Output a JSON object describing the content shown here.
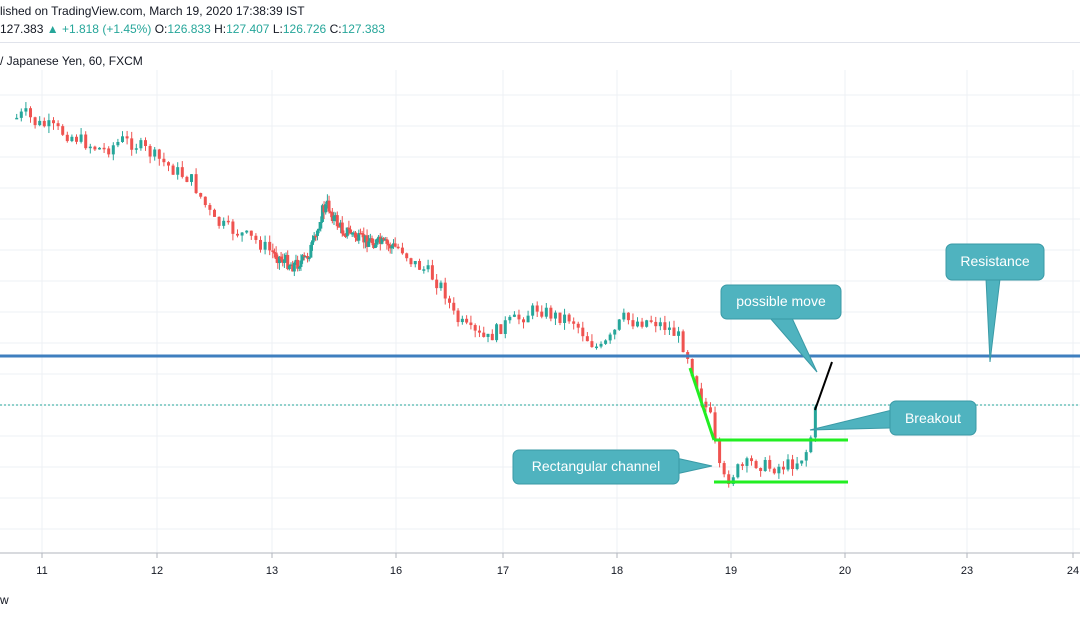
{
  "header": {
    "published": "lished on TradingView.com, March 19, 2020 17:38:39 IST",
    "price": "127.383",
    "change": "▲ +1.818 (+1.45%)",
    "o_label": "O:",
    "o_value": "126.833",
    "h_label": "H:",
    "h_value": "127.407",
    "l_label": "L:",
    "l_value": "126.726",
    "c_label": "C:",
    "c_value": "127.383",
    "symbol": "/ Japanese Yen, 60, FXCM"
  },
  "footer": {
    "text": "w"
  },
  "colors": {
    "up": "#26a69a",
    "down": "#ef5350",
    "resistance": "#3f7fbf",
    "channel": "#22ee22",
    "callout": "#4fb3bf",
    "grid": "#eef0f4"
  },
  "chart_data": {
    "type": "candlestick",
    "x_ticks": [
      "11",
      "12",
      "13",
      "16",
      "17",
      "18",
      "19",
      "20",
      "23",
      "24"
    ],
    "x_ticks_dates": [
      "11",
      "12",
      "13",
      "16",
      "17",
      "18",
      "19",
      "20",
      "23",
      "24"
    ],
    "price_path": [
      [
        10.78,
        118.0
      ],
      [
        10.85,
        113.0
      ],
      [
        10.95,
        124.0
      ],
      [
        11.05,
        126.0
      ],
      [
        11.15,
        131.0
      ],
      [
        11.3,
        138.0
      ],
      [
        11.45,
        147.0
      ],
      [
        11.55,
        150.0
      ],
      [
        11.7,
        140.0
      ],
      [
        11.85,
        146.0
      ],
      [
        12.0,
        158.0
      ],
      [
        12.15,
        170.0
      ],
      [
        12.3,
        180.0
      ],
      [
        12.5,
        222.0
      ],
      [
        12.65,
        230.0
      ],
      [
        12.85,
        240.0
      ],
      [
        13.0,
        252.0
      ],
      [
        13.2,
        258.0
      ],
      [
        13.5,
        265.0
      ],
      [
        13.8,
        260.0
      ],
      [
        14.05,
        240.0
      ],
      [
        14.2,
        212.0
      ],
      [
        14.35,
        205.0
      ],
      [
        14.5,
        218.0
      ],
      [
        14.7,
        230.0
      ],
      [
        14.9,
        232.0
      ],
      [
        15.1,
        240.0
      ],
      [
        15.2,
        240.0
      ],
      [
        15.3,
        240.0
      ],
      [
        16.05,
        248.0
      ],
      [
        16.15,
        262.0
      ],
      [
        16.3,
        272.0
      ],
      [
        16.45,
        290.0
      ],
      [
        16.55,
        318.0
      ],
      [
        16.7,
        332.0
      ],
      [
        16.85,
        340.0
      ],
      [
        17.0,
        325.0
      ],
      [
        17.15,
        318.0
      ],
      [
        17.3,
        308.0
      ],
      [
        17.45,
        316.0
      ],
      [
        17.6,
        318.0
      ],
      [
        17.75,
        340.0
      ],
      [
        17.85,
        350.0
      ],
      [
        17.95,
        338.0
      ],
      [
        18.05,
        318.0
      ],
      [
        18.15,
        322.0
      ],
      [
        18.3,
        320.0
      ],
      [
        18.45,
        328.0
      ],
      [
        18.55,
        338.0
      ],
      [
        18.62,
        355.0
      ],
      [
        18.68,
        378.0
      ],
      [
        18.75,
        400.0
      ],
      [
        18.82,
        418.0
      ],
      [
        18.9,
        470.0
      ],
      [
        18.95,
        482.0
      ],
      [
        19.05,
        470.0
      ],
      [
        19.2,
        462.0
      ],
      [
        19.35,
        468.0
      ],
      [
        19.5,
        465.0
      ],
      [
        19.6,
        460.0
      ],
      [
        19.68,
        448.0
      ],
      [
        19.72,
        425.0
      ],
      [
        19.75,
        405.0
      ]
    ],
    "resistance_y": 356,
    "current_price_y": 405,
    "annotations": [
      "possible move",
      "Resistance",
      "Breakout",
      "Rectangular channel"
    ]
  }
}
